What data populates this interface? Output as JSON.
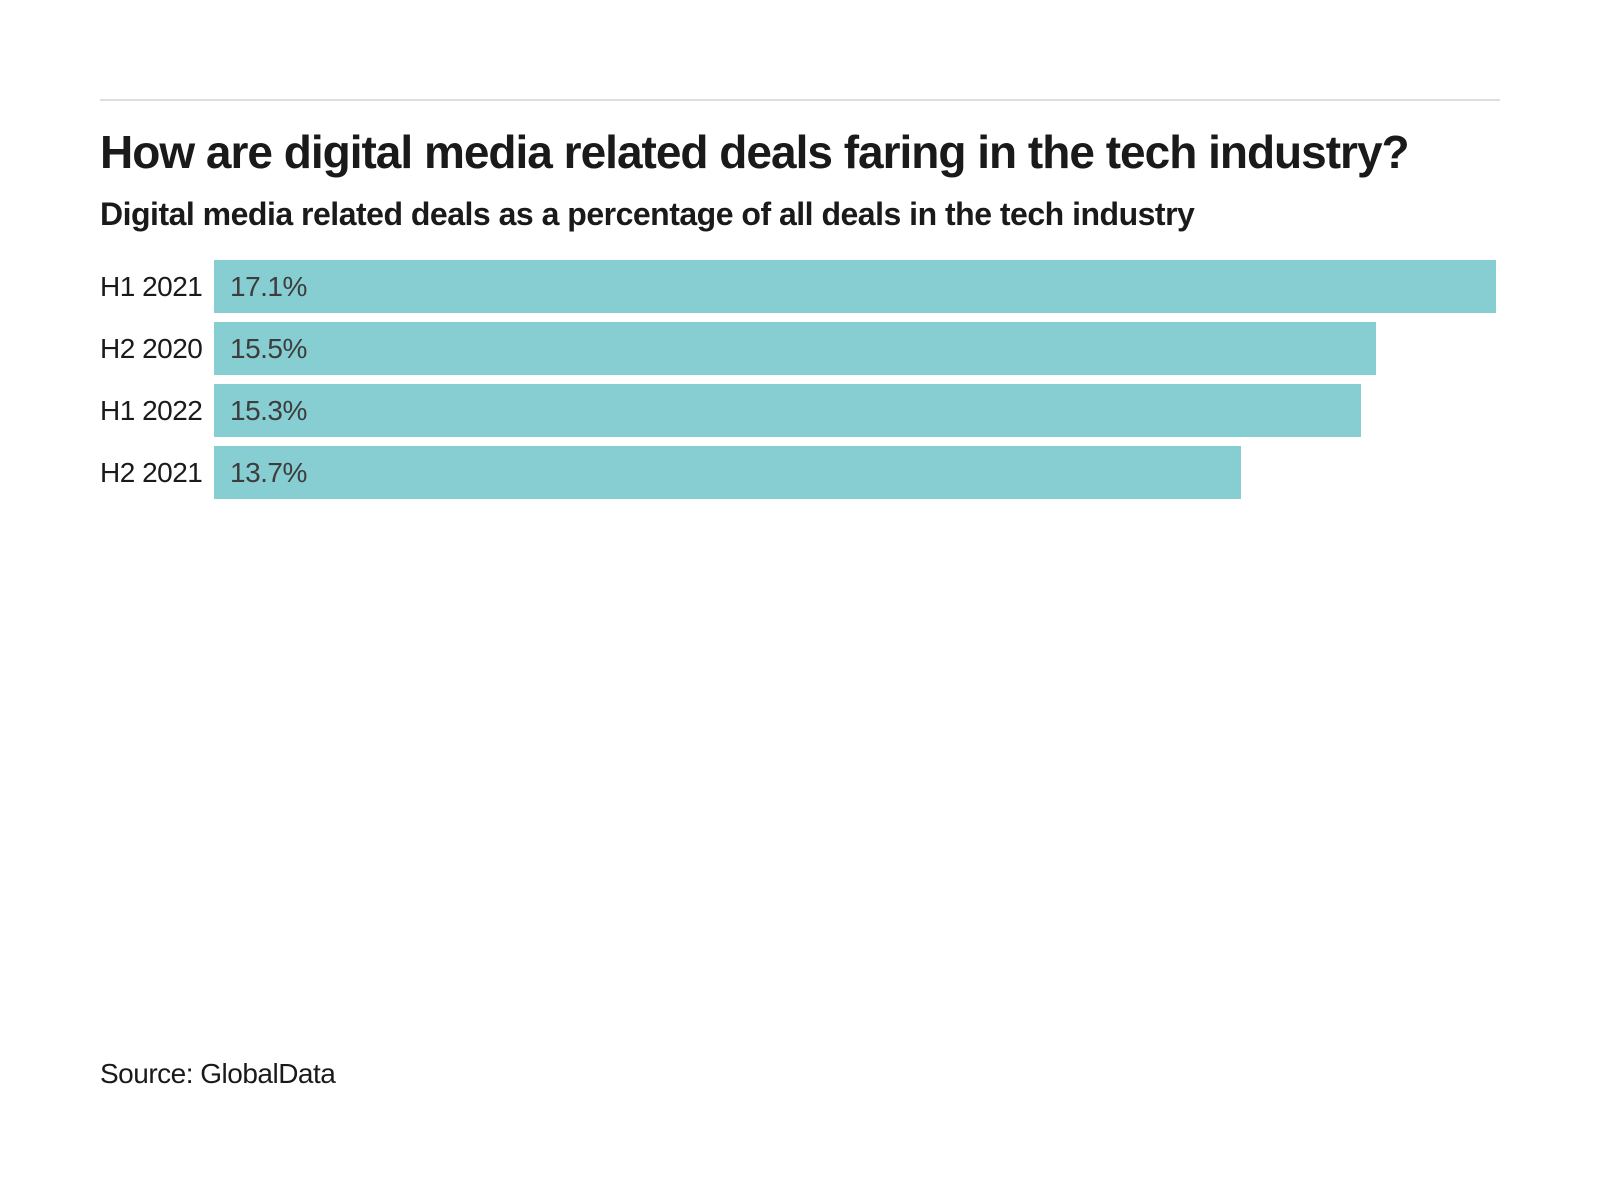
{
  "page": {
    "background_color": "#ffffff",
    "divider_color": "#dedede"
  },
  "header": {
    "title": "How are digital media related deals faring in the tech industry?",
    "subtitle": "Digital media related deals as a percentage of all deals in the tech industry"
  },
  "chart_data": {
    "type": "bar",
    "orientation": "horizontal",
    "title": "How are digital media related deals faring in the tech industry?",
    "subtitle": "Digital media related deals as a percentage of all deals in the tech industry",
    "categories": [
      "H1 2021",
      "H2 2020",
      "H1 2022",
      "H2 2021"
    ],
    "values": [
      17.1,
      15.5,
      15.3,
      13.7
    ],
    "value_labels": [
      "17.1%",
      "15.5%",
      "15.3%",
      "13.7%"
    ],
    "xlim": [
      0,
      17.15
    ],
    "grid": false,
    "legend": "none",
    "bar_color": "#86CED2",
    "value_label_color": "#3d3d3d",
    "category_label_color": "#1a1a1a"
  },
  "footer": {
    "source_label": "Source: GlobalData"
  }
}
